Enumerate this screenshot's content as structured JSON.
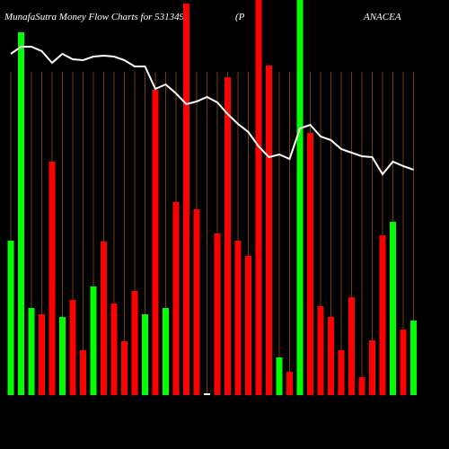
{
  "chart_data": {
    "type": "bar",
    "title_parts": [
      "MunafaSutra  Money Flow  Charts for 531349",
      "(P",
      "ANACEA"
    ],
    "ylim": [
      0,
      440
    ],
    "series": [
      {
        "values": [
          172,
          404,
          97,
          90,
          260,
          87,
          106,
          50,
          121,
          171,
          102,
          60,
          116,
          90,
          340,
          97,
          215,
          436,
          207,
          2,
          180,
          354,
          172,
          155,
          440,
          367,
          42,
          26,
          440,
          292,
          99,
          87,
          50,
          109,
          20,
          61,
          178,
          193,
          73,
          83
        ],
        "colors": [
          "#00ff00",
          "#00ff00",
          "#00ff00",
          "#ff0000",
          "#ff0000",
          "#00ff00",
          "#ff0000",
          "#ff0000",
          "#00ff00",
          "#ff0000",
          "#ff0000",
          "#ff0000",
          "#ff0000",
          "#00ff00",
          "#ff0000",
          "#00ff00",
          "#ff0000",
          "#ff0000",
          "#ff0000",
          "#ffffff",
          "#ff0000",
          "#ff0000",
          "#ff0000",
          "#ff0000",
          "#ff0000",
          "#ff0000",
          "#00ff00",
          "#ff0000",
          "#00ff00",
          "#ff0000",
          "#ff0000",
          "#ff0000",
          "#ff0000",
          "#ff0000",
          "#ff0000",
          "#ff0000",
          "#ff0000",
          "#00ff00",
          "#ff0000",
          "#00ff00"
        ]
      },
      {
        "color": "#ffffff",
        "values": [
          380,
          388,
          388,
          383,
          370,
          380,
          374,
          373,
          377,
          378,
          377,
          373,
          366,
          366,
          341,
          346,
          336,
          324,
          327,
          332,
          326,
          313,
          302,
          293,
          277,
          265,
          268,
          263,
          297,
          301,
          288,
          284,
          274,
          270,
          266,
          265,
          246,
          260,
          255,
          251
        ]
      }
    ]
  }
}
